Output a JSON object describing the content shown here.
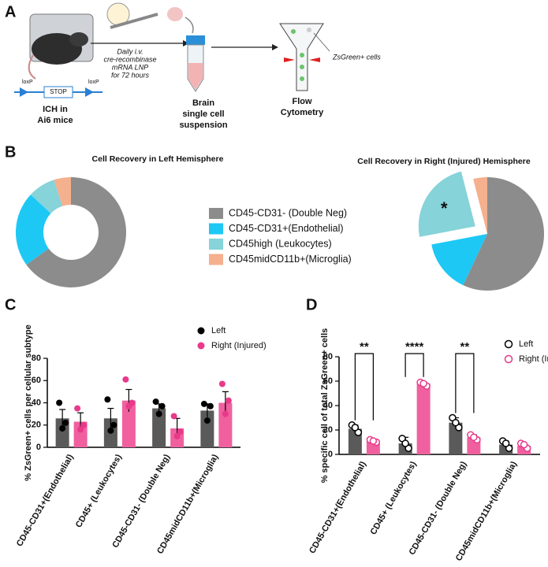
{
  "panel_labels": [
    "A",
    "B",
    "C",
    "D"
  ],
  "schematic": {
    "injection": [
      "Daily i.v.",
      "cre-recombinase",
      "mRNA  LNP",
      "for 72 hours"
    ],
    "mouse": [
      "ICH in",
      "Ai6 mice"
    ],
    "construct": [
      "loxP",
      "STOP",
      "loxP"
    ],
    "brain": [
      "Brain",
      "single cell",
      "suspension"
    ],
    "flow": [
      "Flow",
      "Cytometry"
    ],
    "cells": "ZsGreen+ cells"
  },
  "chart_data": [
    {
      "type": "donut",
      "title": "Cell Recovery in Left Hemisphere",
      "categories": [
        "CD45-CD31- (Double Neg)",
        "CD45-CD31+(Endothelial)",
        "CD45high (Leukocytes)",
        "CD45midCD11b+(Microglia)"
      ],
      "values": [
        65,
        22,
        8,
        5
      ],
      "colors": [
        "#8c8c8c",
        "#1ec8f5",
        "#86d3d9",
        "#f5b08e"
      ],
      "explode": [
        false,
        false,
        false,
        false
      ],
      "legend": true
    },
    {
      "type": "donut",
      "title": "Cell Recovery in Right (Injured)  Hemisphere",
      "values": [
        57,
        15,
        24,
        4
      ],
      "colors": [
        "#8c8c8c",
        "#1ec8f5",
        "#86d3d9",
        "#f5b08e"
      ],
      "explode": [
        false,
        false,
        true,
        false
      ],
      "legend": false,
      "annotations": [
        {
          "text": "*",
          "category": 2
        }
      ]
    },
    {
      "type": "bar",
      "ylabel": "% ZsGreen+ cells per cellular subtype",
      "categories": [
        "CD45-CD31+(Endothelial)",
        "CD45+ (Leukocytes)",
        "CD45-CD31- (Double Neg)",
        "CD45midCD11b+(Microglia)"
      ],
      "ylim": [
        0,
        80
      ],
      "yticks": [
        0,
        20,
        40,
        60,
        80
      ],
      "marker": "filled",
      "series": [
        {
          "name": "Left",
          "color": "#5a5a5a",
          "point_color": "#000000",
          "values": [
            26,
            26,
            35,
            33
          ],
          "errors": [
            8,
            9,
            4,
            6
          ],
          "points": [
            [
              40,
              22,
              17
            ],
            [
              43,
              20,
              15
            ],
            [
              41,
              37,
              30
            ],
            [
              39,
              37,
              24
            ]
          ]
        },
        {
          "name": "Right (Injured)",
          "color": "#f0609f",
          "point_color": "#e8398a",
          "values": [
            23,
            42,
            17,
            40
          ],
          "errors": [
            8,
            10,
            9,
            10
          ],
          "points": [
            [
              35,
              20,
              16
            ],
            [
              61,
              40,
              37
            ],
            [
              28,
              14,
              10
            ],
            [
              57,
              42,
              30
            ]
          ]
        }
      ]
    },
    {
      "type": "bar",
      "ylabel": "% specific cell of total ZsGreen+ cells",
      "categories": [
        "CD45-CD31+(Endothelial)",
        "CD45+ (Leukocytes)",
        "CD45-CD31- (Double Neg)",
        "CD45midCD11b+(Microglia)"
      ],
      "ylim": [
        0,
        80
      ],
      "yticks": [
        0,
        20,
        40,
        60,
        80
      ],
      "marker": "open",
      "series": [
        {
          "name": "Left",
          "color": "#5a5a5a",
          "point_color": "#000000",
          "values": [
            21,
            9,
            26,
            8
          ],
          "errors": [
            3,
            5,
            4,
            3
          ],
          "points": [
            [
              24,
              18,
              22
            ],
            [
              13,
              5,
              9
            ],
            [
              30,
              22,
              26
            ],
            [
              11,
              5,
              9
            ]
          ]
        },
        {
          "name": "Right (Injured)",
          "color": "#f0609f",
          "point_color": "#e8398a",
          "values": [
            11,
            58,
            14,
            7
          ],
          "errors": [
            1,
            1.5,
            2,
            2
          ],
          "points": [
            [
              12,
              10,
              11
            ],
            [
              59,
              56,
              58
            ],
            [
              16,
              12,
              14
            ],
            [
              9,
              5,
              8
            ]
          ]
        }
      ],
      "annotations": [
        {
          "text": "**",
          "category": 0
        },
        {
          "text": "****",
          "category": 1
        },
        {
          "text": "**",
          "category": 2
        }
      ]
    }
  ]
}
